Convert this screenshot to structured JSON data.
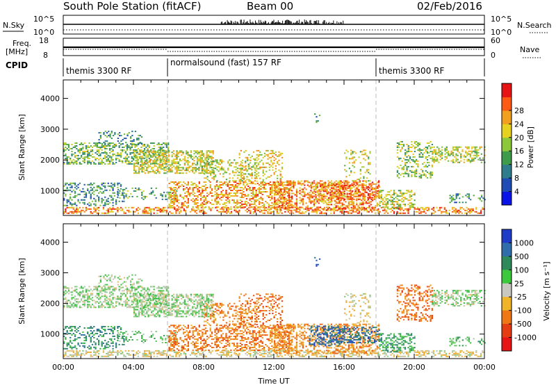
{
  "header": {
    "station": "South Pole Station (fitACF)",
    "beam": "Beam 00",
    "date": "02/Feb/2016"
  },
  "aux_panels": {
    "nsky_label": "N.Sky",
    "nsearch_label": "N.Search",
    "freq_label_1": "Freq.",
    "freq_label_2": "[MHz]",
    "nave_label": "Nave",
    "cpid_label": "CPID",
    "noise_ticks_left": [
      "10^5",
      "10^0"
    ],
    "noise_ticks_right": [
      "10^5",
      "10^0"
    ],
    "freq_ticks": [
      "18",
      "8"
    ],
    "nave_ticks": [
      "60",
      "0"
    ]
  },
  "cpid_segments": [
    {
      "label": "themis 3300 RF",
      "start_hour": 0
    },
    {
      "label": "normalsound (fast) 157 RF",
      "start_hour": 6
    },
    {
      "label": "themis 3300 RF",
      "start_hour": 18
    }
  ],
  "chart_data": [
    {
      "type": "heatmap",
      "name": "power",
      "ylabel": "Slant Range [km]",
      "yticks": [
        "1000",
        "2000",
        "3000",
        "4000"
      ],
      "ylim": [
        200,
        4600
      ],
      "xlim_hours": [
        0,
        24
      ],
      "xticks": [
        "00:00",
        "04:00",
        "08:00",
        "12:00",
        "16:00",
        "20:00",
        "00:00"
      ],
      "colorbar_label": "Power [dB]",
      "colorbar_ticks": [
        "4",
        "8",
        "12",
        "16",
        "20",
        "24",
        "28"
      ],
      "colorbar_colors": [
        "#0a14e6",
        "#1e4bb4",
        "#2f7d8c",
        "#3d9b4a",
        "#8cc83a",
        "#e6d21e",
        "#f0a01e",
        "#ff5a14",
        "#e61414"
      ]
    },
    {
      "type": "heatmap",
      "name": "velocity",
      "ylabel": "Slant Range [km]",
      "yticks": [
        "1000",
        "2000",
        "3000",
        "4000"
      ],
      "ylim": [
        200,
        4600
      ],
      "xlim_hours": [
        0,
        24
      ],
      "xticks": [
        "00:00",
        "04:00",
        "08:00",
        "12:00",
        "16:00",
        "20:00",
        "00:00"
      ],
      "xlabel": "Time UT",
      "colorbar_label": "Velocity [m s⁻¹]",
      "colorbar_ticks": [
        "1000",
        "500",
        "100",
        "25",
        "-25",
        "-100",
        "-500",
        "-1000"
      ],
      "colorbar_colors": [
        "#1e3cc8",
        "#2f6eaa",
        "#2e8a5a",
        "#3cc83c",
        "#c8c8c0",
        "#f0b428",
        "#f07814",
        "#e63c14",
        "#e61414"
      ]
    }
  ]
}
